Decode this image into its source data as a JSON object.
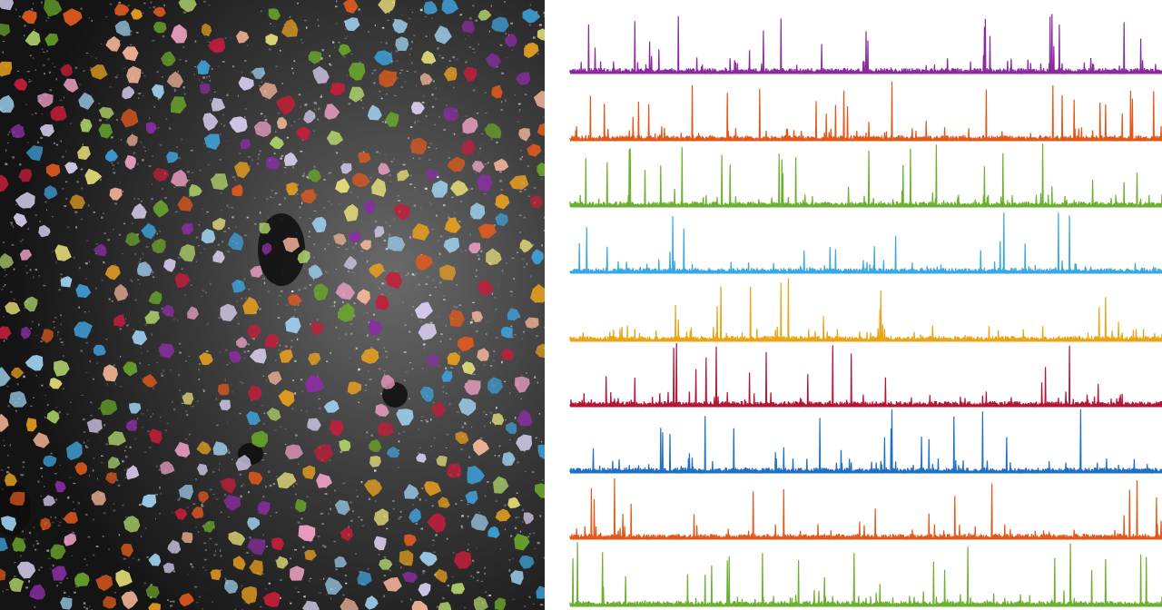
{
  "figure": {
    "microscopy": {
      "description_icon": "neuron-rois-image",
      "background_color": "#1c1c1c",
      "roi_colors": [
        "#e05a1e",
        "#e8a020",
        "#6aa52b",
        "#3fa0d8",
        "#8a2ea3",
        "#c41e3a",
        "#f2a3c7",
        "#f7b79a",
        "#b0d36c",
        "#9fd0ee",
        "#e7e07a",
        "#d9d0f0"
      ]
    },
    "traces": {
      "icon": "calcium-traces",
      "series": [
        {
          "color": "#8b2aa0"
        },
        {
          "color": "#e0591a"
        },
        {
          "color": "#6bb02f"
        },
        {
          "color": "#3aa8e0"
        },
        {
          "color": "#e8a516"
        },
        {
          "color": "#b31535"
        },
        {
          "color": "#1f6fc4"
        },
        {
          "color": "#e0591a"
        },
        {
          "color": "#6bb02f"
        }
      ]
    }
  }
}
